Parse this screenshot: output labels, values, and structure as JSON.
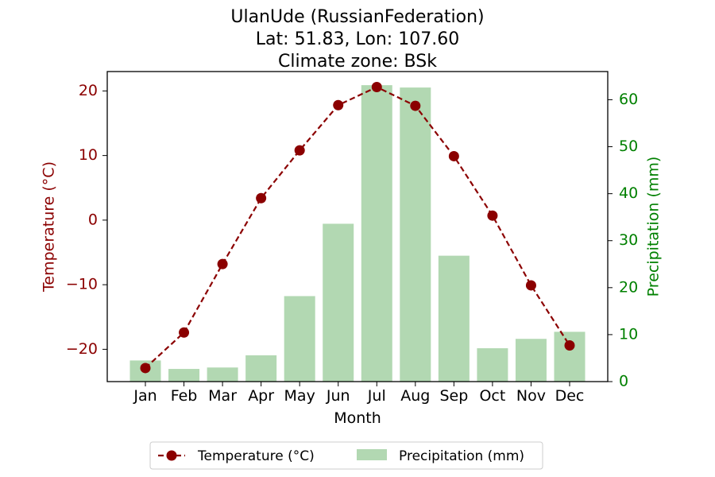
{
  "chart_data": {
    "type": "bar+line",
    "title_lines": [
      "UlanUde (RussianFederation)",
      "Lat: 51.83, Lon: 107.60",
      "Climate zone: BSk"
    ],
    "xlabel": "Month",
    "categories": [
      "Jan",
      "Feb",
      "Mar",
      "Apr",
      "May",
      "Jun",
      "Jul",
      "Aug",
      "Sep",
      "Oct",
      "Nov",
      "Dec"
    ],
    "temperature": {
      "name": "Temperature (°C)",
      "axis_label": "Temperature (°C)",
      "values": [
        -22.9,
        -17.4,
        -6.8,
        3.4,
        10.8,
        17.8,
        20.6,
        17.7,
        9.9,
        0.7,
        -10.1,
        -19.4
      ],
      "ylim": [
        -25,
        23
      ],
      "ticks": [
        -20,
        -10,
        0,
        10,
        20
      ],
      "color": "#8b0000"
    },
    "precipitation": {
      "name": "Precipitation (mm)",
      "axis_label": "Precipitation (mm)",
      "values": [
        4.5,
        2.7,
        3.0,
        5.6,
        18.2,
        33.6,
        63.1,
        62.6,
        26.8,
        7.1,
        9.1,
        10.6
      ],
      "ylim": [
        0,
        66
      ],
      "ticks": [
        0,
        10,
        20,
        30,
        40,
        50,
        60
      ],
      "color": "#b2d8b2",
      "tick_color": "#008000"
    },
    "legend": {
      "placement": "bottom-center",
      "entries": [
        "Temperature (°C)",
        "Precipitation (mm)"
      ]
    }
  }
}
